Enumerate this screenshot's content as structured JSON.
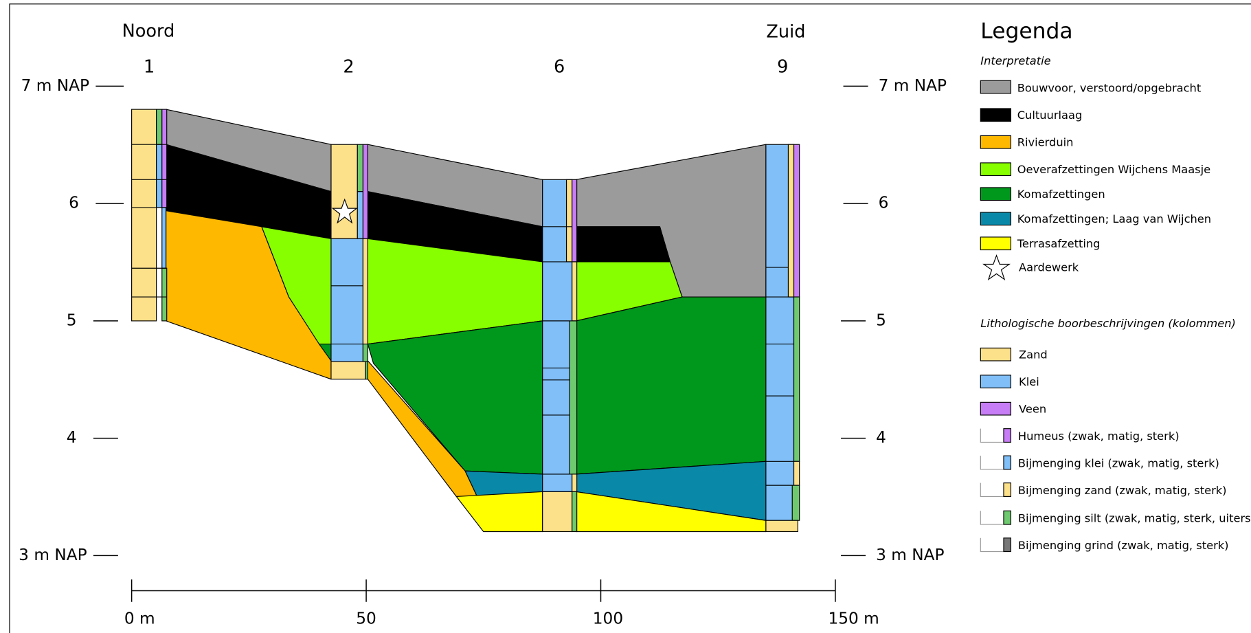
{
  "header": {
    "north": "Noord",
    "south": "Zuid"
  },
  "columns": [
    "1",
    "2",
    "6",
    "9"
  ],
  "depth_labels": [
    "7 m NAP",
    "6",
    "5",
    "4",
    "3 m NAP"
  ],
  "distance_labels": [
    "0 m",
    "50",
    "100",
    "150 m"
  ],
  "legend": {
    "title": "Legenda",
    "interpretation": {
      "heading": "Interpretatie",
      "items": [
        "Bouwvoor, verstoord/opgebracht",
        "Cultuurlaag",
        "Rivierduin",
        "Oeverafzettingen Wijchens Maasje",
        "Komafzettingen",
        "Komafzettingen; Laag van Wijchen",
        "Terrasafzetting",
        "Aardewerk"
      ]
    },
    "lithology": {
      "heading": "Lithologische boorbeschrijvingen (kolommen)",
      "items": [
        "Zand",
        "Klei",
        "Veen",
        "Humeus (zwak, matig, sterk)",
        "Bijmenging klei (zwak, matig, sterk)",
        "Bijmenging zand (zwak, matig, sterk)",
        "Bijmenging silt (zwak, matig, sterk, uiterst)",
        "Bijmenging grind (zwak, matig, sterk)"
      ]
    }
  }
}
